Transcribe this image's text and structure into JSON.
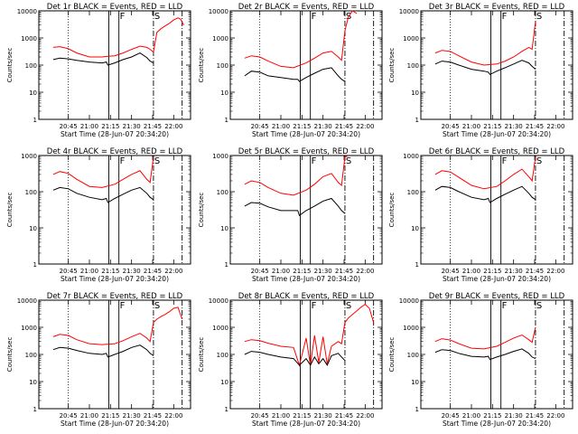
{
  "chart_data": [
    {
      "type": "line",
      "title": "Det 1r BLACK = Events, RED = LLD",
      "ylabel": "Counts/sec",
      "xlabel": "Start Time (28-Jun-07 20:34:20)",
      "yscale": "log",
      "ylim": [
        1,
        10000
      ],
      "yticks": [
        "1",
        "10",
        "100",
        "1000",
        "10000"
      ],
      "xticks": [
        "20:45",
        "21:00",
        "21:15",
        "21:30",
        "21:45",
        "22:00"
      ],
      "markers": [
        {
          "label": "F"
        },
        {
          "label": "S"
        }
      ],
      "series": [
        {
          "color": "#ff0000",
          "x": [
            20.57,
            20.65,
            20.75,
            20.85,
            21.0,
            21.15,
            21.22,
            21.3,
            21.4,
            21.5,
            21.6,
            21.68,
            21.72,
            21.76,
            21.8,
            21.85,
            21.9,
            21.95,
            22.0,
            22.05,
            22.08,
            22.12
          ],
          "values": [
            450,
            480,
            400,
            280,
            200,
            200,
            210,
            220,
            280,
            380,
            500,
            450,
            380,
            300,
            1600,
            2200,
            2800,
            3500,
            4600,
            5500,
            5000,
            3000
          ]
        },
        {
          "color": "#000000",
          "x": [
            20.57,
            20.65,
            20.75,
            20.85,
            21.0,
            21.15,
            21.2,
            21.22,
            21.3,
            21.4,
            21.5,
            21.6,
            21.68,
            21.72,
            21.76
          ],
          "values": [
            160,
            180,
            170,
            150,
            130,
            120,
            130,
            100,
            120,
            160,
            200,
            280,
            190,
            140,
            120
          ]
        }
      ]
    },
    {
      "type": "line",
      "title": "Det 2r BLACK = Events, RED = LLD",
      "ylabel": "Counts/sec",
      "xlabel": "Start Time (28-Jun-07 20:34:20)",
      "yscale": "log",
      "ylim": [
        1,
        10000
      ],
      "yticks": [
        "1",
        "10",
        "100",
        "1000",
        "10000"
      ],
      "xticks": [
        "20:45",
        "21:00",
        "21:15",
        "21:30",
        "21:45",
        "22:00"
      ],
      "markers": [
        {
          "label": "F"
        },
        {
          "label": "S"
        }
      ],
      "series": [
        {
          "color": "#ff0000",
          "x": [
            20.57,
            20.65,
            20.75,
            20.85,
            21.0,
            21.15,
            21.3,
            21.4,
            21.5,
            21.6,
            21.68,
            21.72,
            21.76,
            21.8,
            21.85,
            21.9
          ],
          "values": [
            180,
            220,
            200,
            140,
            90,
            80,
            120,
            180,
            280,
            320,
            200,
            150,
            1800,
            6000,
            10000,
            8000
          ]
        },
        {
          "color": "#000000",
          "x": [
            20.57,
            20.65,
            20.75,
            20.85,
            21.0,
            21.15,
            21.2,
            21.22,
            21.3,
            21.4,
            21.5,
            21.6,
            21.68,
            21.72,
            21.76
          ],
          "values": [
            40,
            60,
            55,
            40,
            35,
            30,
            30,
            25,
            35,
            50,
            70,
            80,
            40,
            30,
            25
          ]
        }
      ]
    },
    {
      "type": "line",
      "title": "Det 3r BLACK = Events, RED = LLD",
      "ylabel": "Counts/sec",
      "xlabel": "Start Time (28-Jun-07 20:34:20)",
      "yscale": "log",
      "ylim": [
        1,
        10000
      ],
      "yticks": [
        "1",
        "10",
        "100",
        "1000",
        "10000"
      ],
      "xticks": [
        "20:45",
        "21:00",
        "21:15",
        "21:30",
        "21:45",
        "22:00"
      ],
      "markers": [
        {
          "label": "F"
        },
        {
          "label": "S"
        }
      ],
      "series": [
        {
          "color": "#ff0000",
          "x": [
            20.57,
            20.65,
            20.75,
            20.85,
            21.0,
            21.15,
            21.3,
            21.4,
            21.5,
            21.6,
            21.68,
            21.72,
            21.76
          ],
          "values": [
            280,
            350,
            320,
            220,
            130,
            100,
            110,
            140,
            200,
            320,
            450,
            380,
            4000
          ]
        },
        {
          "color": "#000000",
          "x": [
            20.57,
            20.65,
            20.75,
            20.85,
            21.0,
            21.15,
            21.2,
            21.22,
            21.3,
            21.4,
            21.5,
            21.6,
            21.68,
            21.72,
            21.76
          ],
          "values": [
            110,
            140,
            130,
            100,
            70,
            60,
            55,
            45,
            60,
            80,
            110,
            150,
            120,
            90,
            70
          ]
        }
      ]
    },
    {
      "type": "line",
      "title": "Det 4r BLACK = Events, RED = LLD",
      "ylabel": "Counts/sec",
      "xlabel": "Start Time (28-Jun-07 20:34:20)",
      "yscale": "log",
      "ylim": [
        1,
        1000
      ],
      "yticks": [
        "1",
        "10",
        "100",
        "1000"
      ],
      "xticks": [
        "20:45",
        "21:00",
        "21:15",
        "21:30",
        "21:45",
        "22:00"
      ],
      "markers": [
        {
          "label": "F"
        },
        {
          "label": "S"
        }
      ],
      "series": [
        {
          "color": "#ff0000",
          "x": [
            20.57,
            20.65,
            20.75,
            20.85,
            21.0,
            21.15,
            21.3,
            21.4,
            21.5,
            21.6,
            21.68,
            21.72,
            21.76
          ],
          "values": [
            300,
            360,
            320,
            220,
            140,
            130,
            160,
            220,
            300,
            380,
            220,
            180,
            900
          ]
        },
        {
          "color": "#000000",
          "x": [
            20.57,
            20.65,
            20.75,
            20.85,
            21.0,
            21.15,
            21.2,
            21.22,
            21.3,
            21.4,
            21.5,
            21.6,
            21.68,
            21.72,
            21.76
          ],
          "values": [
            110,
            130,
            120,
            90,
            70,
            60,
            65,
            50,
            65,
            85,
            110,
            130,
            90,
            70,
            60
          ]
        }
      ]
    },
    {
      "type": "line",
      "title": "Det 5r BLACK = Events, RED = LLD",
      "ylabel": "Counts/sec",
      "xlabel": "Start Time (28-Jun-07 20:34:20)",
      "yscale": "log",
      "ylim": [
        1,
        1000
      ],
      "yticks": [
        "1",
        "10",
        "100",
        "1000"
      ],
      "xticks": [
        "20:45",
        "21:00",
        "21:15",
        "21:30",
        "21:45",
        "22:00"
      ],
      "markers": [
        {
          "label": "F"
        },
        {
          "label": "S"
        }
      ],
      "series": [
        {
          "color": "#ff0000",
          "x": [
            20.57,
            20.65,
            20.75,
            20.85,
            21.0,
            21.15,
            21.3,
            21.4,
            21.5,
            21.6,
            21.68,
            21.72,
            21.76,
            21.8
          ],
          "values": [
            160,
            200,
            180,
            130,
            90,
            80,
            110,
            160,
            260,
            320,
            180,
            150,
            900,
            1000
          ]
        },
        {
          "color": "#000000",
          "x": [
            20.57,
            20.65,
            20.75,
            20.85,
            21.0,
            21.15,
            21.2,
            21.22,
            21.3,
            21.4,
            21.5,
            21.6,
            21.68,
            21.72,
            21.76
          ],
          "values": [
            40,
            50,
            48,
            38,
            30,
            30,
            30,
            22,
            30,
            40,
            55,
            65,
            40,
            30,
            25
          ]
        }
      ]
    },
    {
      "type": "line",
      "title": "Det 6r BLACK = Events, RED = LLD",
      "ylabel": "Counts/sec",
      "xlabel": "Start Time (28-Jun-07 20:34:20)",
      "yscale": "log",
      "ylim": [
        1,
        1000
      ],
      "yticks": [
        "1",
        "10",
        "100",
        "1000"
      ],
      "xticks": [
        "20:45",
        "21:00",
        "21:15",
        "21:30",
        "21:45",
        "22:00"
      ],
      "markers": [
        {
          "label": "F"
        },
        {
          "label": "S"
        }
      ],
      "series": [
        {
          "color": "#ff0000",
          "x": [
            20.57,
            20.65,
            20.75,
            20.85,
            21.0,
            21.15,
            21.3,
            21.4,
            21.5,
            21.6,
            21.68,
            21.72,
            21.76
          ],
          "values": [
            300,
            380,
            350,
            250,
            150,
            120,
            140,
            200,
            300,
            420,
            260,
            200,
            900
          ]
        },
        {
          "color": "#000000",
          "x": [
            20.57,
            20.65,
            20.75,
            20.85,
            21.0,
            21.15,
            21.2,
            21.22,
            21.3,
            21.4,
            21.5,
            21.6,
            21.68,
            21.72,
            21.76
          ],
          "values": [
            110,
            140,
            130,
            100,
            70,
            60,
            65,
            50,
            65,
            85,
            110,
            140,
            90,
            70,
            60
          ]
        }
      ]
    },
    {
      "type": "line",
      "title": "Det 7r BLACK = Events, RED = LLD",
      "ylabel": "Counts/sec",
      "xlabel": "Start Time (28-Jun-07 20:34:20)",
      "yscale": "log",
      "ylim": [
        1,
        10000
      ],
      "yticks": [
        "1",
        "10",
        "100",
        "1000",
        "10000"
      ],
      "xticks": [
        "20:45",
        "21:00",
        "21:15",
        "21:30",
        "21:45",
        "22:00"
      ],
      "markers": [
        {
          "label": "F"
        },
        {
          "label": "S"
        }
      ],
      "series": [
        {
          "color": "#ff0000",
          "x": [
            20.57,
            20.65,
            20.75,
            20.85,
            21.0,
            21.15,
            21.3,
            21.4,
            21.5,
            21.6,
            21.68,
            21.72,
            21.76,
            21.8,
            21.85,
            21.9,
            21.95,
            22.0,
            22.05,
            22.1
          ],
          "values": [
            450,
            550,
            500,
            350,
            250,
            230,
            250,
            320,
            450,
            600,
            400,
            300,
            1500,
            2000,
            2500,
            3000,
            3800,
            5000,
            5500,
            2000
          ]
        },
        {
          "color": "#000000",
          "x": [
            20.57,
            20.65,
            20.75,
            20.85,
            21.0,
            21.15,
            21.2,
            21.22,
            21.3,
            21.4,
            21.5,
            21.6,
            21.68,
            21.72,
            21.76
          ],
          "values": [
            150,
            180,
            170,
            140,
            110,
            100,
            110,
            80,
            100,
            130,
            180,
            220,
            150,
            110,
            90
          ]
        }
      ]
    },
    {
      "type": "line",
      "title": "Det 8r BLACK = Events, RED = LLD",
      "ylabel": "Counts/sec",
      "xlabel": "Start Time (28-Jun-07 20:34:20)",
      "yscale": "log",
      "ylim": [
        1,
        10000
      ],
      "yticks": [
        "1",
        "10",
        "100",
        "1000",
        "10000"
      ],
      "xticks": [
        "20:45",
        "21:00",
        "21:15",
        "21:30",
        "21:45",
        "22:00"
      ],
      "markers": [
        {
          "label": "F"
        },
        {
          "label": "S"
        }
      ],
      "series": [
        {
          "color": "#ff0000",
          "x": [
            20.57,
            20.65,
            20.75,
            20.85,
            21.0,
            21.15,
            21.22,
            21.3,
            21.35,
            21.4,
            21.45,
            21.5,
            21.55,
            21.6,
            21.68,
            21.72,
            21.76,
            21.8,
            21.85,
            21.9,
            21.95,
            22.0,
            22.05,
            22.1
          ],
          "values": [
            300,
            350,
            320,
            260,
            200,
            180,
            40,
            400,
            40,
            500,
            50,
            450,
            45,
            200,
            300,
            250,
            1500,
            2200,
            3000,
            4000,
            5500,
            7000,
            5000,
            1500
          ]
        },
        {
          "color": "#000000",
          "x": [
            20.57,
            20.65,
            20.75,
            20.85,
            21.0,
            21.15,
            21.22,
            21.3,
            21.35,
            21.4,
            21.45,
            21.5,
            21.55,
            21.6,
            21.68,
            21.72,
            21.76
          ],
          "values": [
            100,
            130,
            120,
            100,
            80,
            70,
            40,
            70,
            40,
            80,
            45,
            70,
            40,
            90,
            110,
            80,
            60
          ]
        }
      ]
    },
    {
      "type": "line",
      "title": "Det 9r BLACK = Events, RED = LLD",
      "ylabel": "Counts/sec",
      "xlabel": "Start Time (28-Jun-07 20:34:20)",
      "yscale": "log",
      "ylim": [
        1,
        10000
      ],
      "yticks": [
        "1",
        "10",
        "100",
        "1000",
        "10000"
      ],
      "xticks": [
        "20:45",
        "21:00",
        "21:15",
        "21:30",
        "21:45",
        "22:00"
      ],
      "markers": [
        {
          "label": "F"
        },
        {
          "label": "S"
        }
      ],
      "series": [
        {
          "color": "#ff0000",
          "x": [
            20.57,
            20.65,
            20.75,
            20.85,
            21.0,
            21.15,
            21.3,
            21.4,
            21.5,
            21.6,
            21.68,
            21.72,
            21.76
          ],
          "values": [
            300,
            380,
            340,
            250,
            170,
            160,
            200,
            280,
            400,
            520,
            350,
            280,
            1000
          ]
        },
        {
          "color": "#000000",
          "x": [
            20.57,
            20.65,
            20.75,
            20.85,
            21.0,
            21.15,
            21.2,
            21.22,
            21.3,
            21.4,
            21.5,
            21.6,
            21.68,
            21.72,
            21.76
          ],
          "values": [
            120,
            150,
            140,
            110,
            85,
            80,
            85,
            65,
            80,
            100,
            130,
            160,
            110,
            80,
            70
          ]
        }
      ]
    }
  ]
}
